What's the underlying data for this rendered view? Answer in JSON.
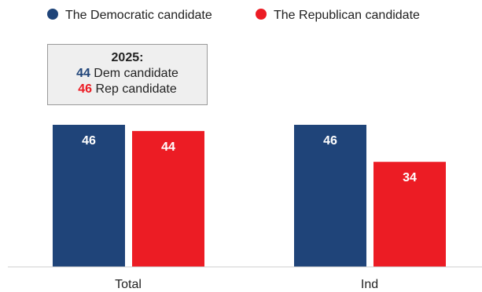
{
  "chart_data": {
    "type": "bar",
    "categories": [
      "Total",
      "Ind"
    ],
    "series": [
      {
        "name": "The Democratic candidate",
        "color": "#1f4479",
        "values": [
          46,
          46
        ]
      },
      {
        "name": "The Republican candidate",
        "color": "#ec1c24",
        "values": [
          44,
          34
        ]
      }
    ],
    "ylim": [
      0,
      50
    ],
    "grid": false,
    "legend": "top",
    "annotation": {
      "title": "2025:",
      "lines": [
        {
          "value": "44",
          "text": " Dem candidate",
          "color": "#1f4479"
        },
        {
          "value": "46",
          "text": " Rep candidate",
          "color": "#ec1c24"
        }
      ]
    }
  }
}
